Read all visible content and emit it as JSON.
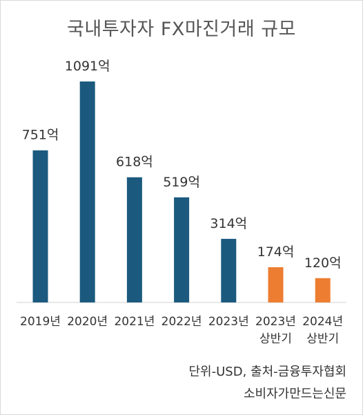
{
  "title": "국내투자자 FX마진거래 규모",
  "chart_data": {
    "type": "bar",
    "title": "국내투자자 FX마진거래 규모",
    "categories": [
      [
        "2019년"
      ],
      [
        "2020년"
      ],
      [
        "2021년"
      ],
      [
        "2022년"
      ],
      [
        "2023년"
      ],
      [
        "2023년",
        "상반기"
      ],
      [
        "2024년",
        "상반기"
      ]
    ],
    "values": [
      751,
      1091,
      618,
      519,
      314,
      174,
      120
    ],
    "data_labels": [
      "751억",
      "1091억",
      "618억",
      "519억",
      "314억",
      "174억",
      "120억"
    ],
    "colors": [
      "#1b5a7e",
      "#1b5a7e",
      "#1b5a7e",
      "#1b5a7e",
      "#1b5a7e",
      "#ed7d31",
      "#ed7d31"
    ],
    "ylim": [
      0,
      1091
    ],
    "grid": false,
    "legend": "none"
  },
  "notes": {
    "source": "단위-USD, 출처-금융투자협회",
    "credit": "소비자가만드는신문"
  }
}
